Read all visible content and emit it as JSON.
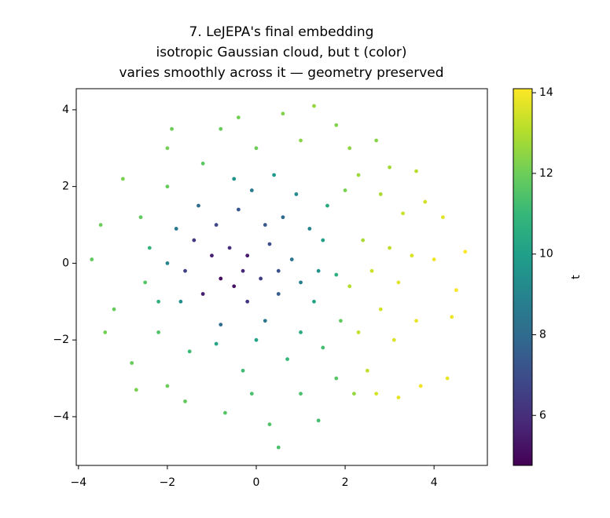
{
  "chart_data": {
    "type": "scatter",
    "title": [
      "7. LeJEPA's final embedding",
      "isotropic Gaussian cloud, but t (color)",
      "varies smoothly across it — geometry preserved"
    ],
    "colormap": "viridis",
    "colorbar_label": "t",
    "clim": [
      4.76,
      14.1
    ],
    "cticks": [
      6,
      8,
      10,
      12,
      14
    ],
    "xlim": [
      -4.05,
      5.2
    ],
    "ylim": [
      -5.27,
      4.55
    ],
    "xticks": [
      {
        "value": -4,
        "label": "−4"
      },
      {
        "value": -2,
        "label": "−2"
      },
      0,
      2,
      4
    ],
    "yticks": [
      {
        "value": -4,
        "label": "−4"
      },
      {
        "value": -2,
        "label": "−2"
      },
      0,
      2,
      4
    ],
    "x": [
      -0.8,
      -0.5,
      -1.0,
      -0.3,
      -1.2,
      -0.6,
      -0.2,
      0.1,
      -1.4,
      -0.9,
      0.3,
      -0.4,
      0.5,
      -1.6,
      0.6,
      0.8,
      -1.3,
      -0.1,
      1.0,
      0.2,
      -0.8,
      -1.8,
      1.2,
      0.9,
      1.4,
      -0.5,
      0.4,
      1.5,
      -2.0,
      -1.7,
      1.3,
      0.0,
      -0.9,
      1.0,
      1.8,
      1.6,
      0.7,
      -0.3,
      1.5,
      -1.5,
      -2.2,
      -2.5,
      -2.6,
      -2.0,
      -1.2,
      0.0,
      1.0,
      -0.8,
      0.6,
      1.3,
      -2.0,
      -3.0,
      -3.5,
      -3.7,
      -3.2,
      -3.4,
      -2.8,
      -2.0,
      -1.6,
      -0.7,
      0.3,
      0.5,
      1.4,
      1.0,
      1.8,
      2.2,
      2.5,
      2.3,
      2.8,
      3.1,
      3.6,
      3.2,
      2.6,
      2.1,
      2.4,
      3.0,
      3.5,
      4.0,
      4.5,
      4.7,
      4.4,
      4.3,
      3.7,
      3.2,
      2.7,
      3.3,
      3.8,
      4.2,
      2.8,
      2.3,
      3.0,
      3.6,
      2.1,
      2.7,
      1.8,
      -1.9,
      -0.4,
      -2.7,
      -0.1,
      2.0,
      1.9,
      -2.4,
      -2.2,
      0.2,
      -0.2,
      0.5
    ],
    "values": [
      -0.4,
      -0.6,
      0.2,
      -0.2,
      -0.8,
      0.4,
      -1.0,
      -0.4,
      0.6,
      1.0,
      0.5,
      1.4,
      -0.8,
      -0.2,
      1.2,
      0.1,
      1.5,
      1.9,
      -0.5,
      -1.5,
      -1.6,
      0.9,
      0.9,
      1.8,
      -0.2,
      2.2,
      2.3,
      0.6,
      0.0,
      -1.0,
      -1.0,
      -2.0,
      -2.1,
      -1.8,
      -0.3,
      1.5,
      -2.5,
      -2.8,
      -2.2,
      -2.3,
      -1.8,
      -0.5,
      1.2,
      2.0,
      2.6,
      3.0,
      3.2,
      3.5,
      3.9,
      4.1,
      3.0,
      2.2,
      1.0,
      0.1,
      -1.2,
      -1.8,
      -2.6,
      -3.2,
      -3.6,
      -3.9,
      -4.2,
      -4.8,
      -4.1,
      -3.4,
      -3.0,
      -3.4,
      -2.8,
      -1.8,
      -1.2,
      -2.0,
      -1.5,
      -0.5,
      -0.2,
      -0.6,
      0.6,
      0.4,
      0.2,
      0.1,
      -0.7,
      0.3,
      -1.4,
      -3.0,
      -3.2,
      -3.5,
      -3.4,
      1.3,
      1.6,
      1.2,
      1.8,
      2.3,
      2.5,
      2.4,
      3.0,
      3.2,
      3.6,
      3.5,
      3.8,
      -3.3,
      -3.4,
      1.9,
      -1.5,
      0.4,
      -1.0,
      1.0,
      0.2,
      -0.2
    ],
    "t": [
      5.0,
      5.2,
      5.6,
      5.8,
      5.5,
      6.0,
      6.2,
      6.5,
      6.3,
      6.8,
      7.0,
      7.3,
      7.5,
      6.6,
      8.0,
      8.3,
      8.1,
      8.6,
      8.8,
      8.4,
      8.0,
      8.5,
      9.0,
      9.2,
      9.5,
      9.6,
      9.8,
      10.0,
      9.0,
      9.4,
      10.2,
      10.1,
      10.3,
      10.5,
      10.6,
      10.4,
      11.0,
      11.2,
      11.3,
      11.1,
      11.5,
      11.6,
      11.8,
      11.9,
      11.7,
      12.0,
      12.4,
      11.9,
      12.3,
      12.6,
      12.1,
      12.2,
      12.0,
      11.8,
      11.9,
      12.1,
      11.9,
      12.0,
      11.8,
      11.6,
      11.5,
      11.4,
      11.3,
      11.4,
      11.6,
      12.6,
      13.2,
      13.3,
      13.5,
      13.6,
      13.8,
      13.7,
      13.4,
      13.0,
      12.9,
      13.2,
      13.6,
      13.9,
      14.0,
      14.1,
      13.9,
      13.8,
      13.9,
      13.8,
      13.5,
      13.4,
      13.5,
      13.7,
      12.9,
      12.7,
      12.8,
      13.1,
      12.5,
      12.4,
      12.3,
      12.0,
      12.1,
      12.2,
      11.4,
      12.2,
      11.8,
      10.9,
      10.7,
      7.4,
      5.4,
      7.1
    ]
  }
}
